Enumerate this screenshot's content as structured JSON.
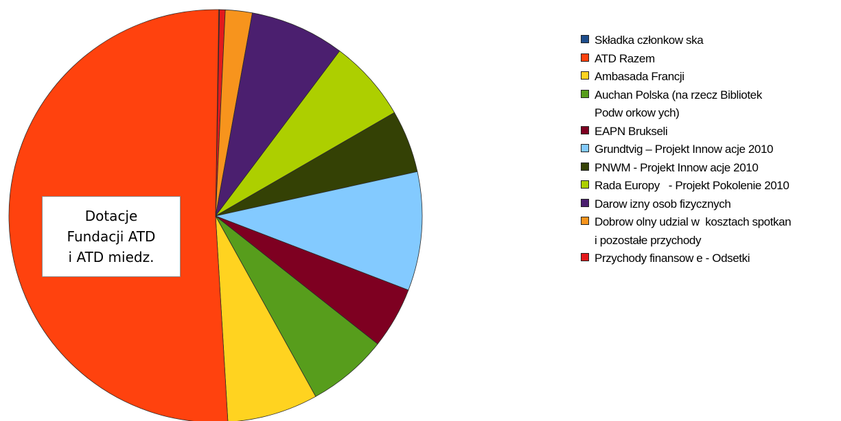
{
  "chart_data": {
    "type": "pie",
    "title": "",
    "series": [
      {
        "name": "Składka członkow ska",
        "value": 0.05,
        "color": "#1F4E8C"
      },
      {
        "name": "Przychody finansow e - Odsetki",
        "value": 0.45,
        "color": "#E31A1C"
      },
      {
        "name": "Dobrow olny udzial w  kosztach spotkan i pozostałe przychody",
        "value": 2.1,
        "color": "#F7941D"
      },
      {
        "name": "Darow izny osob fizycznych",
        "value": 7.4,
        "color": "#4B1F6F"
      },
      {
        "name": "Rada Europy   - Projekt Pokolenie 2010",
        "value": 6.4,
        "color": "#ADCF00"
      },
      {
        "name": "PNWM - Projekt Innow acje 2010",
        "value": 4.9,
        "color": "#344105"
      },
      {
        "name": "Grundtvig – Projekt Innow acje 2010",
        "value": 9.3,
        "color": "#83CAFF"
      },
      {
        "name": "EAPN Brukseli",
        "value": 4.8,
        "color": "#7E0021"
      },
      {
        "name": "Auchan Polska (na rzecz Bibliotek Podw orkow ych)",
        "value": 6.3,
        "color": "#579D1C"
      },
      {
        "name": "Ambasada Francji",
        "value": 7.1,
        "color": "#FFD320"
      },
      {
        "name": "ATD Razem",
        "value": 51.2,
        "color": "#FF420E"
      }
    ],
    "legend_placement": "right",
    "annotation": {
      "lines": [
        "Dotacje",
        "Fundacji ATD",
        "i ATD miedz."
      ]
    }
  },
  "legend": [
    {
      "label": "Składka członkow ska",
      "color": "#1F4E8C"
    },
    {
      "label": "ATD Razem",
      "color": "#FF420E"
    },
    {
      "label": "Ambasada Francji",
      "color": "#FFD320"
    },
    {
      "label": "Auchan Polska (na rzecz Bibliotek\nPodw orkow ych)",
      "color": "#579D1C"
    },
    {
      "label": "EAPN Brukseli",
      "color": "#7E0021"
    },
    {
      "label": "Grundtvig – Projekt Innow acje 2010",
      "color": "#83CAFF"
    },
    {
      "label": "PNWM - Projekt Innow acje 2010",
      "color": "#344105"
    },
    {
      "label": "Rada Europy   - Projekt Pokolenie 2010",
      "color": "#ADCF00"
    },
    {
      "label": "Darow izny osob fizycznych",
      "color": "#4B1F6F"
    },
    {
      "label": "Dobrow olny udzial w  kosztach spotkan\ni pozostałe przychody",
      "color": "#F7941D"
    },
    {
      "label": "Przychody finansow e - Odsetki",
      "color": "#E31A1C"
    }
  ]
}
